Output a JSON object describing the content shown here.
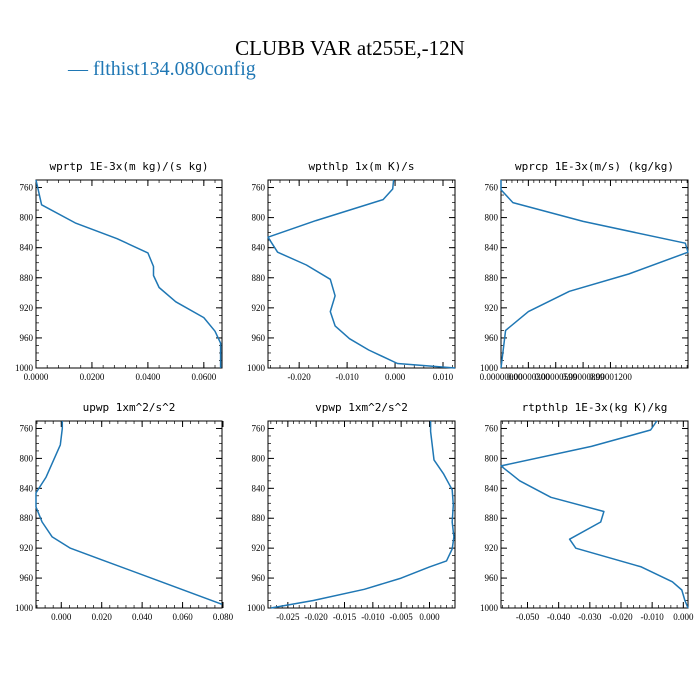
{
  "title": "CLUBB VAR at255E,-12N",
  "legend": {
    "line": "—",
    "label": "flthist134.080config",
    "color": "#1f77b4"
  },
  "chart_data": [
    {
      "type": "line",
      "title": "wprtp  1E-3x(m kg)/(s kg)",
      "xlim": [
        0.0,
        0.0665
      ],
      "ylim": [
        1000,
        750
      ],
      "yticks": [
        760,
        800,
        840,
        880,
        920,
        960,
        1000
      ],
      "xticks": [
        0.0,
        0.02,
        0.04,
        0.06
      ],
      "xtick_labels": [
        "0.0000",
        "0.0200",
        "0.0400",
        "0.0600"
      ],
      "series": [
        {
          "x": [
            0.0,
            0.002,
            0.014,
            0.029,
            0.04,
            0.042,
            0.042,
            0.044,
            0.05,
            0.06,
            0.064,
            0.066,
            0.066
          ],
          "y": [
            750,
            783,
            807,
            828,
            847,
            865,
            877,
            893,
            912,
            933,
            951,
            967,
            1000
          ]
        }
      ]
    },
    {
      "type": "line",
      "title": "wpthlp  1x(m K)/s",
      "xlim": [
        -0.0265,
        0.0125
      ],
      "ylim": [
        1000,
        750
      ],
      "yticks": [
        760,
        800,
        840,
        880,
        920,
        960,
        1000
      ],
      "xticks": [
        -0.02,
        -0.01,
        0.0,
        0.01
      ],
      "xtick_labels": [
        "-0.020",
        "-0.010",
        "0.000",
        "0.010"
      ],
      "series": [
        {
          "x": [
            -0.0003,
            -0.0005,
            -0.0025,
            -0.0165,
            -0.0265,
            -0.0245,
            -0.0185,
            -0.0135,
            -0.0125,
            -0.0135,
            -0.0125,
            -0.0095,
            -0.0055,
            0.0005,
            0.0125
          ],
          "y": [
            750,
            762,
            776,
            804,
            826,
            846,
            863,
            882,
            904,
            925,
            944,
            961,
            976,
            994,
            1000
          ]
        }
      ]
    },
    {
      "type": "line",
      "title": "wprcp  1E-3x(m/s) (kg/kg)",
      "xlim": [
        0.0,
        2.05e-05
      ],
      "ylim": [
        1000,
        750
      ],
      "yticks": [
        760,
        800,
        840,
        880,
        920,
        960,
        1000
      ],
      "xticks": [
        0.0,
        3e-06,
        6e-06,
        9e-06,
        1.2e-05
      ],
      "xtick_labels": [
        "0.00000000",
        "0.00000300",
        "0.00000599",
        "0.00000899",
        "0.00001200"
      ],
      "series": [
        {
          "x": [
            0.0,
            0.0,
            1.3e-06,
            9e-06,
            2.02e-05,
            2.05e-05,
            1.4e-05,
            7.5e-06,
            3e-06,
            5e-07,
            0.0
          ],
          "y": [
            750,
            763,
            780,
            805,
            834,
            846,
            875,
            898,
            925,
            950,
            1000
          ]
        }
      ]
    },
    {
      "type": "line",
      "title": "upwp  1xm^2/s^2",
      "xlim": [
        -0.0125,
        0.0795
      ],
      "ylim": [
        1000,
        750
      ],
      "yticks": [
        760,
        800,
        840,
        880,
        920,
        960,
        1000
      ],
      "xticks": [
        0.0,
        0.02,
        0.04,
        0.06,
        0.08
      ],
      "xtick_labels": [
        "0.000",
        "0.020",
        "0.040",
        "0.060",
        "0.080"
      ],
      "series": [
        {
          "x": [
            0.0005,
            0.0005,
            -0.0005,
            -0.0075,
            -0.0125,
            -0.0125,
            -0.0095,
            -0.0045,
            0.0045,
            0.0195,
            0.0495,
            0.0795
          ],
          "y": [
            750,
            760,
            782,
            825,
            846,
            865,
            885,
            905,
            920,
            935,
            965,
            995
          ]
        }
      ]
    },
    {
      "type": "line",
      "title": "vpwp  1xm^2/s^2",
      "xlim": [
        -0.0285,
        0.0045
      ],
      "ylim": [
        1000,
        750
      ],
      "yticks": [
        760,
        800,
        840,
        880,
        920,
        960,
        1000
      ],
      "xticks": [
        -0.025,
        -0.02,
        -0.015,
        -0.01,
        -0.005,
        0.0
      ],
      "xtick_labels": [
        "-0.025",
        "-0.020",
        "-0.015",
        "-0.010",
        "-0.005",
        "0.000"
      ],
      "series": [
        {
          "x": [
            0.0002,
            0.0002,
            0.0008,
            0.0025,
            0.004,
            0.0042,
            0.004,
            0.0043,
            0.004,
            0.003,
            0.0,
            -0.005,
            -0.0115,
            -0.0205,
            -0.028
          ],
          "y": [
            750,
            764,
            802,
            821,
            842,
            862,
            885,
            905,
            921,
            937,
            945,
            960,
            975,
            990,
            1000
          ]
        }
      ]
    },
    {
      "type": "line",
      "title": "rtpthlp  1E-3x(kg K)/kg",
      "xlim": [
        -0.0585,
        0.0015
      ],
      "ylim": [
        1000,
        750
      ],
      "yticks": [
        760,
        800,
        840,
        880,
        920,
        960,
        1000
      ],
      "xticks": [
        -0.05,
        -0.04,
        -0.03,
        -0.02,
        -0.01,
        0.0
      ],
      "xtick_labels": [
        "-0.050",
        "-0.040",
        "-0.030",
        "-0.020",
        "-0.010",
        "0.000"
      ],
      "series": [
        {
          "x": [
            -0.0085,
            -0.0105,
            -0.0295,
            -0.0585,
            -0.0525,
            -0.0425,
            -0.0255,
            -0.0265,
            -0.0365,
            -0.0345,
            -0.0135,
            -0.0035,
            -0.0005,
            0.0005,
            0.0015
          ],
          "y": [
            750,
            762,
            784,
            810,
            830,
            852,
            871,
            885,
            908,
            920,
            945,
            965,
            976,
            990,
            1000
          ]
        }
      ]
    }
  ]
}
